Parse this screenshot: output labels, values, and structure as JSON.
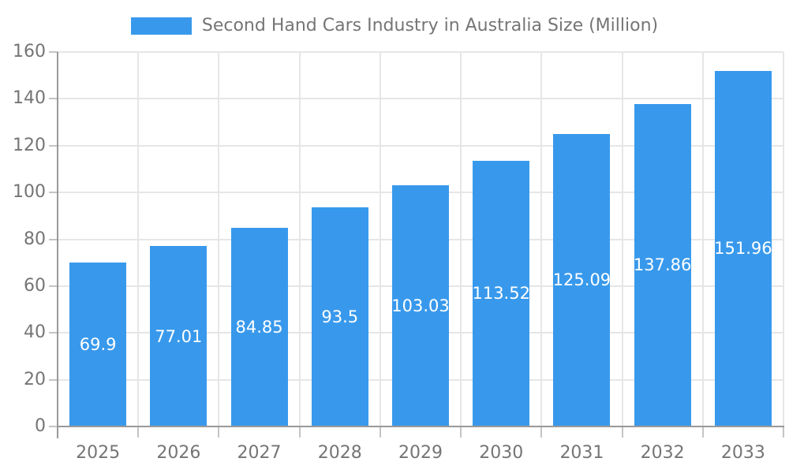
{
  "chart_data": {
    "type": "bar",
    "title": "Second Hand Cars Industry in Australia Size (Million)",
    "categories": [
      "2025",
      "2026",
      "2027",
      "2028",
      "2029",
      "2030",
      "2031",
      "2032",
      "2033"
    ],
    "values": [
      69.9,
      77.01,
      84.85,
      93.5,
      103.03,
      113.52,
      125.09,
      137.86,
      151.96
    ],
    "xlabel": "",
    "ylabel": "",
    "ylim": [
      0,
      160
    ],
    "yticks": [
      0,
      20,
      40,
      60,
      80,
      100,
      120,
      140,
      160
    ],
    "legend_position": "top",
    "grid": true,
    "value_labels_inside_bars": true
  },
  "colors": {
    "bar": "#3899EC",
    "title_text": "#757575",
    "tick_text": "#757575",
    "axis_line": "#999999",
    "grid_line": "#e6e6e6",
    "tick_line": "#c4c4c4",
    "bar_label_text": "#ffffff",
    "background": "#ffffff"
  }
}
